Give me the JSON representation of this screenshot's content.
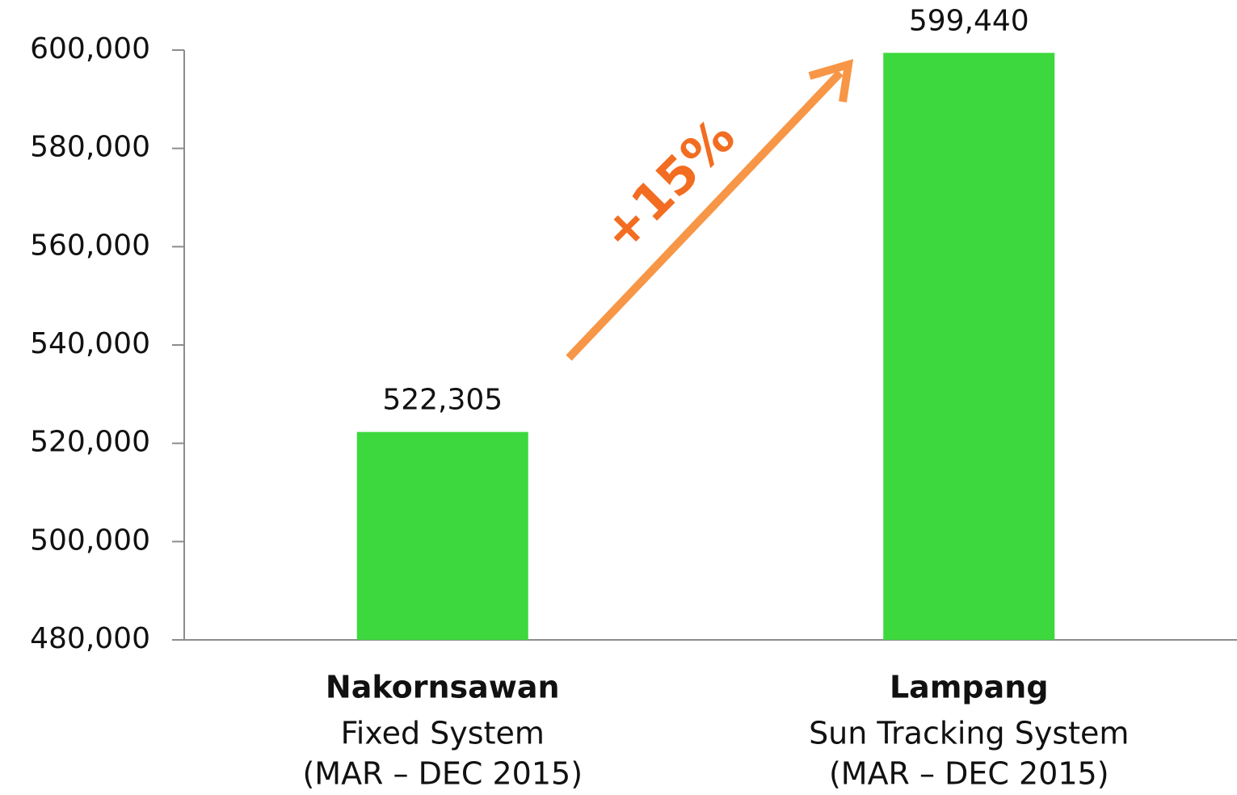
{
  "chart_data": {
    "type": "bar",
    "categories": [
      "Nakornsawan",
      "Lampang"
    ],
    "category_sublabels": [
      [
        "Fixed System",
        "(MAR – DEC 2015)"
      ],
      [
        "Sun Tracking System",
        "(MAR – DEC 2015)"
      ]
    ],
    "values": [
      522305,
      599440
    ],
    "value_labels": [
      "522,305",
      "599,440"
    ],
    "color": "#3dd83d",
    "ylim": [
      480000,
      600000
    ],
    "yticks": [
      {
        "value": 480000,
        "label": "480,000"
      },
      {
        "value": 500000,
        "label": "500,000"
      },
      {
        "value": 520000,
        "label": "520,000"
      },
      {
        "value": 540000,
        "label": "540,000"
      },
      {
        "value": 560000,
        "label": "560,000"
      },
      {
        "value": 580000,
        "label": "580,000"
      },
      {
        "value": 600000,
        "label": "600,000"
      }
    ],
    "grid": false,
    "annotation": "+15%",
    "annotation_color": "#f79646"
  }
}
